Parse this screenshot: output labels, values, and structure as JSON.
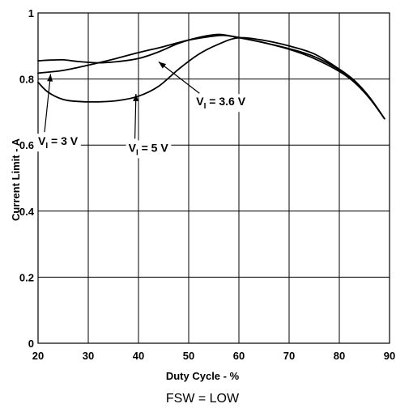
{
  "chart_data": {
    "type": "line",
    "xlabel": "Duty Cycle - %",
    "ylabel": "Current Limit - A",
    "footnote": "FSW = LOW",
    "xlim": [
      20,
      90
    ],
    "ylim": [
      0,
      1
    ],
    "xticks": [
      20,
      30,
      40,
      50,
      60,
      70,
      80,
      90
    ],
    "yticks": [
      0,
      0.2,
      0.4,
      0.6,
      0.8,
      1
    ],
    "ytick_labels": [
      "0",
      "0.2",
      "0.4",
      "0.6",
      "0.8",
      "1"
    ],
    "grid": true,
    "series": [
      {
        "name": "VI = 3 V",
        "x": [
          20,
          22,
          25,
          28,
          32,
          36,
          40,
          44,
          48,
          52,
          56,
          60,
          65,
          70,
          75,
          80,
          83,
          86,
          89
        ],
        "y": [
          0.855,
          0.857,
          0.858,
          0.853,
          0.849,
          0.853,
          0.862,
          0.882,
          0.908,
          0.926,
          0.935,
          0.925,
          0.91,
          0.892,
          0.868,
          0.828,
          0.795,
          0.745,
          0.68
        ]
      },
      {
        "name": "VI = 3.6 V",
        "x": [
          20,
          25,
          30,
          35,
          40,
          45,
          50,
          55,
          57,
          60,
          65,
          70,
          75,
          80,
          83,
          86,
          89
        ],
        "y": [
          0.818,
          0.826,
          0.842,
          0.86,
          0.88,
          0.898,
          0.918,
          0.93,
          0.932,
          0.926,
          0.91,
          0.89,
          0.862,
          0.823,
          0.79,
          0.742,
          0.68
        ]
      },
      {
        "name": "VI = 5 V",
        "x": [
          20,
          22,
          25,
          28,
          32,
          36,
          40,
          44,
          48,
          52,
          56,
          60,
          65,
          70,
          75,
          80,
          83,
          86,
          89
        ],
        "y": [
          0.79,
          0.76,
          0.738,
          0.732,
          0.731,
          0.735,
          0.748,
          0.778,
          0.83,
          0.875,
          0.906,
          0.925,
          0.917,
          0.9,
          0.876,
          0.83,
          0.795,
          0.745,
          0.68
        ]
      }
    ],
    "annotations": [
      {
        "main": "V",
        "sub": "I",
        "rest": " = 3 V",
        "anchor": [
          20,
          0.6
        ],
        "arrow_to": [
          22.5,
          0.815
        ]
      },
      {
        "main": "V",
        "sub": "I",
        "rest": " = 5 V",
        "anchor": [
          38,
          0.58
        ],
        "arrow_to": [
          39.5,
          0.755
        ]
      },
      {
        "main": "V",
        "sub": "I",
        "rest": " = 3.6 V",
        "anchor": [
          51.5,
          0.72
        ],
        "arrow_to": [
          44,
          0.852
        ]
      }
    ]
  }
}
